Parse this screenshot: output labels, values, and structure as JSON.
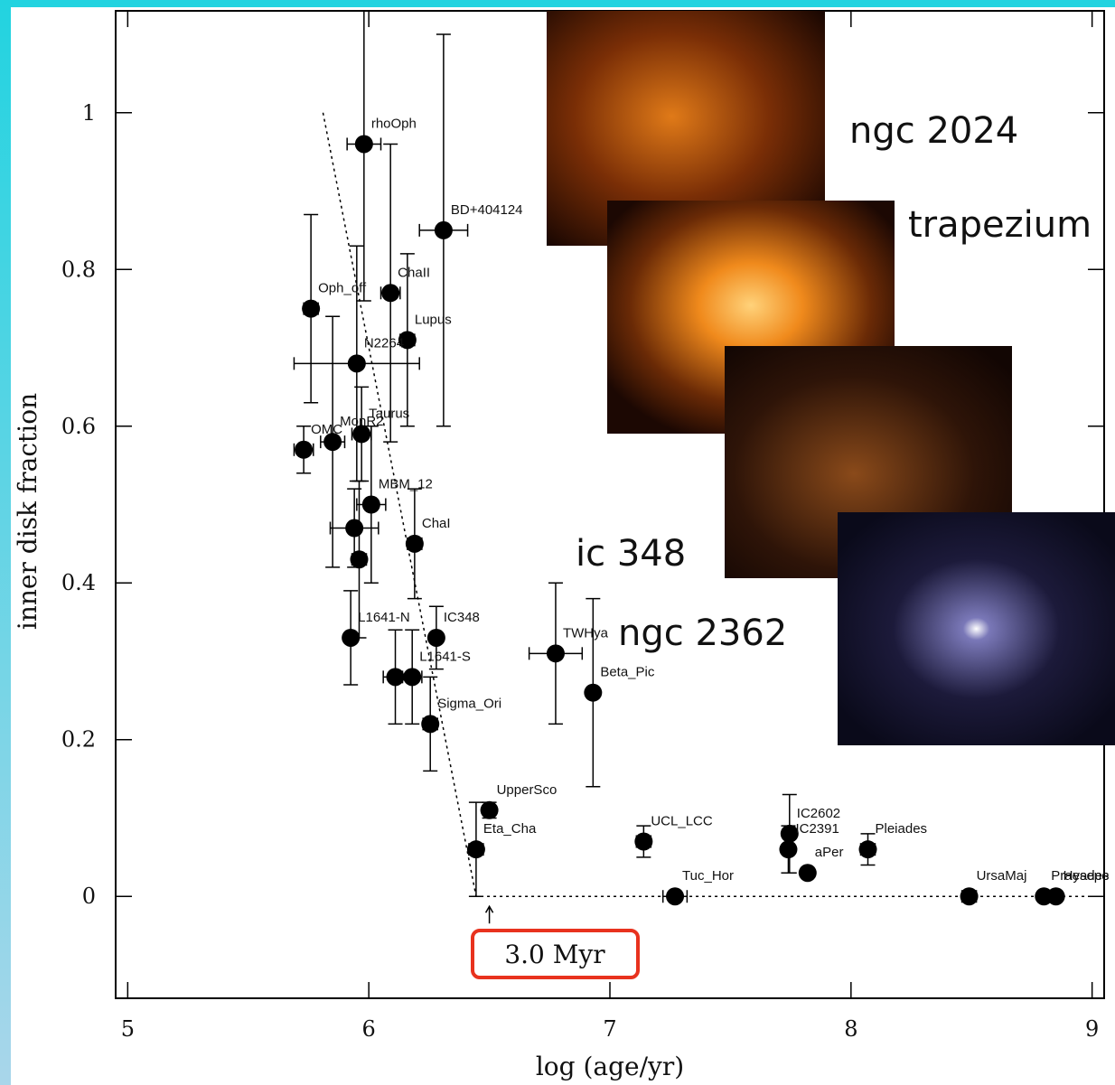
{
  "chart_data": {
    "type": "scatter",
    "xlabel": "log (age/yr)",
    "ylabel": "inner disk fraction",
    "xlim": [
      4.95,
      9.05
    ],
    "ylim": [
      -0.13,
      1.13
    ],
    "xticks": [
      5,
      6,
      7,
      8,
      9
    ],
    "yticks": [
      0,
      0.2,
      0.4,
      0.6,
      0.8,
      1
    ],
    "color": "#000000",
    "series": [
      {
        "labels": [
          "rhoOph",
          "BD+404124",
          "ChaII",
          "Oph_off",
          "Lupus",
          "N2264",
          "OMC",
          "MonR2",
          "Taurus",
          "MBM_12",
          null,
          "ChaI",
          null,
          "L1641-N",
          "IC348",
          "L1641-S",
          null,
          "Sigma_Ori",
          "TWHya",
          "Beta_Pic",
          "UpperSco",
          "Eta_Cha",
          "UCL_LCC",
          "Tuc_Hor",
          "IC2602",
          "IC2391",
          "aPer",
          "Pleiades",
          "UrsaMaj",
          "Praesepe",
          "Hyades"
        ],
        "x": [
          5.98,
          6.31,
          6.09,
          5.76,
          6.16,
          5.95,
          5.73,
          5.85,
          5.97,
          6.01,
          5.94,
          6.19,
          5.96,
          5.925,
          6.28,
          6.18,
          6.11,
          6.255,
          6.775,
          6.93,
          6.5,
          6.445,
          7.14,
          7.27,
          7.745,
          7.74,
          7.82,
          8.07,
          8.49,
          8.8,
          8.85
        ],
        "values": [
          0.96,
          0.85,
          0.77,
          0.75,
          0.71,
          0.68,
          0.57,
          0.58,
          0.59,
          0.5,
          0.47,
          0.45,
          0.43,
          0.33,
          0.33,
          0.28,
          0.28,
          0.22,
          0.31,
          0.26,
          0.11,
          0.06,
          0.07,
          0,
          0.08,
          0.06,
          0.03,
          0.06,
          0,
          0,
          0
        ],
        "yerr": [
          0.2,
          0.25,
          0.19,
          0.12,
          0.11,
          0.15,
          0.03,
          0.16,
          0.06,
          0.1,
          0.05,
          0.07,
          0.1,
          0.06,
          0.04,
          0.06,
          0.06,
          0.06,
          0.09,
          0.12,
          0.01,
          0.06,
          0.02,
          0,
          0.05,
          0.03,
          0,
          0.02,
          0,
          0,
          0
        ],
        "xerr": [
          0.07,
          0.1,
          0.04,
          0.03,
          0.03,
          0.26,
          0.04,
          0.05,
          0.04,
          0.06,
          0.1,
          0.03,
          0.03,
          0.02,
          0.02,
          0.04,
          0.05,
          0.03,
          0.11,
          0.02,
          0.02,
          0.03,
          0.03,
          0.05,
          0.02,
          0.02,
          0.02,
          0.03,
          0.03,
          0.02,
          0.02
        ]
      }
    ],
    "trend": {
      "x": [
        5.81,
        6.445,
        9.04
      ],
      "values": [
        1,
        0,
        0
      ]
    },
    "annotation": {
      "text": "3.0 Myr",
      "x": 6.5
    },
    "insets": [
      "ngc 2024",
      "trapezium",
      "ic 348",
      "ngc 2362"
    ]
  }
}
